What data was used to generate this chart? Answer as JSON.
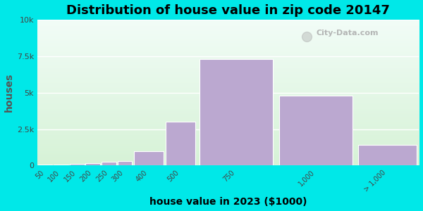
{
  "title": "Distribution of house value in zip code 20147",
  "xlabel": "house value in 2023 ($1000)",
  "ylabel": "houses",
  "bar_labels": [
    "50",
    "100",
    "150",
    "200",
    "250",
    "300",
    "400",
    "500",
    "750",
    "1,000",
    "> 1,000"
  ],
  "bar_left_edges": [
    0,
    50,
    100,
    150,
    200,
    250,
    300,
    400,
    500,
    750,
    1000
  ],
  "bar_widths": [
    50,
    50,
    50,
    50,
    50,
    50,
    100,
    100,
    250,
    250,
    200
  ],
  "bar_values": [
    80,
    55,
    100,
    155,
    240,
    320,
    1000,
    3000,
    7300,
    4800,
    1400
  ],
  "bar_color": "#bba8d0",
  "bar_edge_color": "#ffffff",
  "ylim": [
    0,
    10000
  ],
  "yticks": [
    0,
    2500,
    5000,
    7500,
    10000
  ],
  "ytick_labels": [
    "0",
    "2.5k",
    "5k",
    "7.5k",
    "10k"
  ],
  "background_color": "#00e8e8",
  "title_fontsize": 13,
  "axis_label_fontsize": 10,
  "ylabel_color": "#555555",
  "watermark_text": "City-Data.com"
}
